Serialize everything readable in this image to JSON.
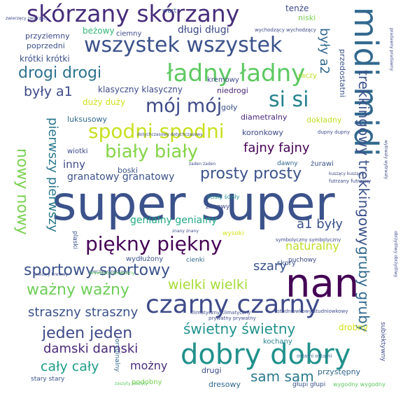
{
  "words": [
    {
      "text": "super super",
      "color": "#3b528b"
    },
    {
      "text": "nan",
      "color": "#440154"
    },
    {
      "text": "midi midi",
      "color": "#31688e"
    },
    {
      "text": "dobry dobry",
      "color": "#21918c"
    },
    {
      "text": "czarny czarny",
      "color": "#3e4a89"
    },
    {
      "text": "skórzany skórzany",
      "color": "#472d7b"
    },
    {
      "text": "ładny ładny",
      "color": "#5ec962"
    },
    {
      "text": "wszystek wszystek",
      "color": "#3b528b"
    },
    {
      "text": "spodni spodni",
      "color": "#c8e020"
    },
    {
      "text": "piękny piękny",
      "color": "#440154"
    },
    {
      "text": "gruby gruby",
      "color": "#31688e"
    },
    {
      "text": "trekkingowy trekkingowy",
      "color": "#3b528b"
    },
    {
      "text": "si si",
      "color": "#26828e"
    },
    {
      "text": "mój mój",
      "color": "#3e4a89"
    },
    {
      "text": "biały biały",
      "color": "#86d549"
    },
    {
      "text": "drogi drogi",
      "color": "#2c728e"
    },
    {
      "text": "nowy nowy",
      "color": "#7ad151"
    },
    {
      "text": "sportowy sportowy",
      "color": "#3b528b"
    },
    {
      "text": "ważny ważny",
      "color": "#6ece58"
    },
    {
      "text": "jeden jeden",
      "color": "#3e4a89"
    },
    {
      "text": "pierwszy pierwszy",
      "color": "#2a788e"
    },
    {
      "text": "prosty prosty",
      "color": "#3b528b"
    },
    {
      "text": "fajny fajny",
      "color": "#440154"
    },
    {
      "text": "wielki wielki",
      "color": "#a5db36"
    },
    {
      "text": "świetny świetny",
      "color": "#21918c"
    },
    {
      "text": "damski damski",
      "color": "#482878"
    },
    {
      "text": "straszny straszny",
      "color": "#3b528b"
    },
    {
      "text": "cały cały",
      "color": "#1f9e89"
    },
    {
      "text": "sam sam",
      "color": "#2a788e"
    },
    {
      "text": "były a1",
      "color": "#3e4a89"
    },
    {
      "text": "a1 były",
      "color": "#3b528b"
    },
    {
      "text": "były a2",
      "color": "#31688e"
    },
    {
      "text": "szary",
      "color": "#3b528b"
    },
    {
      "text": "naturalny",
      "color": "#bddf26"
    },
    {
      "text": "genialny genialny",
      "color": "#22a884"
    },
    {
      "text": "granatowy granatowy",
      "color": "#3b528b"
    },
    {
      "text": "możny",
      "color": "#472d7b"
    },
    {
      "text": "inny",
      "color": "#3e4a89"
    },
    {
      "text": "długi długi",
      "color": "#3e4a89"
    },
    {
      "text": "krótki krótki",
      "color": "#3b528b"
    },
    {
      "text": "beżowy",
      "color": "#35b779"
    },
    {
      "text": "przyziemny",
      "color": "#3e4a89"
    },
    {
      "text": "poprzedni",
      "color": "#3b528b"
    },
    {
      "text": "klasyczny klasyczny",
      "color": "#3e4a89"
    },
    {
      "text": "duży duży",
      "color": "#d2e21b"
    },
    {
      "text": "luksusowy",
      "color": "#31688e"
    },
    {
      "text": "goły",
      "color": "#3b528b"
    },
    {
      "text": "niedrogi",
      "color": "#482878"
    },
    {
      "text": "kremowy",
      "color": "#3e4a89"
    },
    {
      "text": "ciemny",
      "color": "#3e4a89"
    },
    {
      "text": "wart",
      "color": "#3b528b"
    },
    {
      "text": "tenże",
      "color": "#3e4a89"
    },
    {
      "text": "niski",
      "color": "#7ad151"
    },
    {
      "text": "wychodzący wychodzący",
      "color": "#3e4a89"
    },
    {
      "text": "raczy",
      "color": "#bddf26"
    },
    {
      "text": "przedostatni",
      "color": "#3b528b"
    },
    {
      "text": "diametralny",
      "color": "#482878"
    },
    {
      "text": "dokładny",
      "color": "#bddf26"
    },
    {
      "text": "koronkowy",
      "color": "#3e4a89"
    },
    {
      "text": "boski",
      "color": "#3b528b"
    },
    {
      "text": "wiotki",
      "color": "#3e4a89"
    },
    {
      "text": "żurawi",
      "color": "#3b528b"
    },
    {
      "text": "dawny",
      "color": "#31688e"
    },
    {
      "text": "zimowy",
      "color": "#3e4a89"
    },
    {
      "text": "cienki",
      "color": "#31688e"
    },
    {
      "text": "puchowy",
      "color": "#3e4a89"
    },
    {
      "text": "skory",
      "color": "#3b528b"
    },
    {
      "text": "wysoki",
      "color": "#d2e21b"
    },
    {
      "text": "wydłużony",
      "color": "#3b528b"
    },
    {
      "text": "drobny",
      "color": "#d2e21b"
    },
    {
      "text": "kochany",
      "color": "#26828e"
    },
    {
      "text": "drugi",
      "color": "#3e4a89"
    },
    {
      "text": "dresowy",
      "color": "#31688e"
    },
    {
      "text": "podobny",
      "color": "#7ad151"
    },
    {
      "text": "stary stary",
      "color": "#3b528b"
    },
    {
      "text": "przystępny",
      "color": "#31688e"
    },
    {
      "text": "głupi głupi",
      "color": "#3b528b"
    },
    {
      "text": "wygodny wygodny",
      "color": "#5ec962"
    },
    {
      "text": "subiektywny",
      "color": "#3e4a89"
    },
    {
      "text": "plaski",
      "color": "#3b528b"
    },
    {
      "text": "oryginalny",
      "color": "#31688e"
    },
    {
      "text": "symbolyczny symbolyczny",
      "color": "#3e4a89"
    },
    {
      "text": "klimatyczny klimatyczny",
      "color": "#3e4a89"
    },
    {
      "text": "studniowkowy studniowkowy",
      "color": "#3e4a89"
    },
    {
      "text": "prywatny prywatny",
      "color": "#3e4a89"
    },
    {
      "text": "ostatni ostatni",
      "color": "#31688e"
    },
    {
      "text": "futrzany futrzany",
      "color": "#3e4a89"
    },
    {
      "text": "kuszący kuszący",
      "color": "#3e4a89"
    },
    {
      "text": "ścisły ścisły",
      "color": "#21918c"
    },
    {
      "text": "znany znany",
      "color": "#3e4a89"
    },
    {
      "text": "żaden żaden",
      "color": "#3e4a89"
    },
    {
      "text": "dotychczasowy dotychczasowy",
      "color": "#3e4a89"
    },
    {
      "text": "zwierzęcy zwierzęcy",
      "color": "#3e4a89"
    },
    {
      "text": "dupny dupny",
      "color": "#3e4a89"
    },
    {
      "text": "męczący męczący",
      "color": "#3e4a89"
    },
    {
      "text": "zaszyty zaszyty",
      "color": "#5ec962"
    },
    {
      "text": "drewniany drewniany",
      "color": "#5ec962"
    },
    {
      "text": "brelowy brelowy",
      "color": "#3e4a89"
    },
    {
      "text": "pradawny pradawny",
      "color": "#3e4a89"
    },
    {
      "text": "obrzydliwy obrzydliwy",
      "color": "#3e4a89"
    },
    {
      "text": "wytrwały wytrwały",
      "color": "#3e4a89"
    }
  ]
}
